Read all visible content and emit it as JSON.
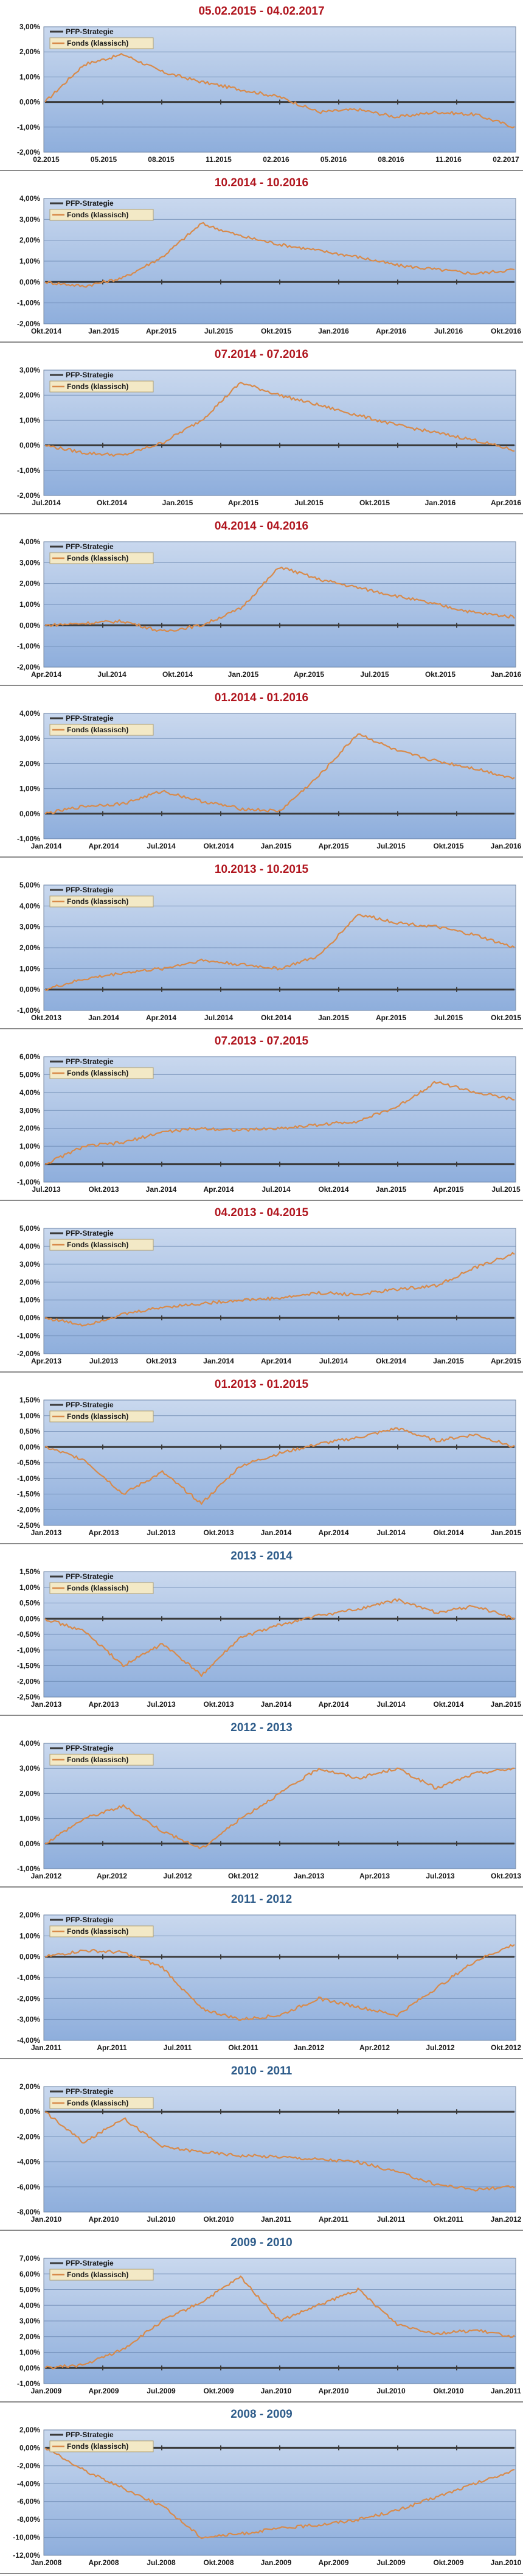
{
  "legend": {
    "series1": "PFP-Strategie",
    "series2": "Fonds (klassisch)"
  },
  "colors": {
    "title_red": "#b0151e",
    "title_blue": "#2e5c8a",
    "line_pfp": "#3b3b3b",
    "line_fonds": "#d88a4a",
    "plot_top": "#c9d8ee",
    "plot_bottom": "#8eaedc"
  },
  "chart_data": [
    {
      "type": "line",
      "title": "05.02.2015 - 04.02.2017",
      "title_color": "red",
      "yticks": [
        "3,00%",
        "2,00%",
        "1,00%",
        "0,00%",
        "-1,00%",
        "-2,00%"
      ],
      "ylim": [
        -2,
        3
      ],
      "xticks": [
        "02.2015",
        "05.2015",
        "08.2015",
        "11.2015",
        "02.2016",
        "05.2016",
        "08.2016",
        "11.2016",
        "02.2017"
      ],
      "series": [
        {
          "name": "PFP-Strategie",
          "values": [
            0,
            0,
            0,
            0,
            0,
            0,
            0,
            0,
            0,
            0,
            0,
            0,
            0
          ]
        },
        {
          "name": "Fonds (klassisch)",
          "values": [
            0,
            1.5,
            1.9,
            1.2,
            0.8,
            0.5,
            0.2,
            -0.4,
            -0.3,
            -0.6,
            -0.4,
            -0.5,
            -1.0
          ]
        }
      ]
    },
    {
      "type": "line",
      "title": "10.2014 - 10.2016",
      "title_color": "red",
      "yticks": [
        "4,00%",
        "3,00%",
        "2,00%",
        "1,00%",
        "0,00%",
        "-1,00%",
        "-2,00%"
      ],
      "ylim": [
        -2,
        4
      ],
      "xticks": [
        "Okt.2014",
        "Jan.2015",
        "Apr.2015",
        "Jul.2015",
        "Okt.2015",
        "Jan.2016",
        "Apr.2016",
        "Jul.2016",
        "Okt.2016"
      ],
      "series": [
        {
          "name": "PFP-Strategie",
          "values": [
            0,
            0,
            0,
            0,
            0,
            0,
            0,
            0,
            0,
            0,
            0,
            0,
            0
          ]
        },
        {
          "name": "Fonds (klassisch)",
          "values": [
            0,
            -0.2,
            0.2,
            1.2,
            2.8,
            2.2,
            1.8,
            1.5,
            1.2,
            0.8,
            0.6,
            0.4,
            0.6
          ]
        }
      ]
    },
    {
      "type": "line",
      "title": "07.2014 - 07.2016",
      "title_color": "red",
      "yticks": [
        "3,00%",
        "2,00%",
        "1,00%",
        "0,00%",
        "-1,00%",
        "-2,00%"
      ],
      "ylim": [
        -2,
        3
      ],
      "xticks": [
        "Jul.2014",
        "Okt.2014",
        "Jan.2015",
        "Apr.2015",
        "Jul.2015",
        "Okt.2015",
        "Jan.2016",
        "Apr.2016"
      ],
      "series": [
        {
          "name": "PFP-Strategie",
          "values": [
            0,
            0,
            0,
            0,
            0,
            0,
            0,
            0,
            0,
            0,
            0,
            0,
            0
          ]
        },
        {
          "name": "Fonds (klassisch)",
          "values": [
            0,
            -0.3,
            -0.4,
            0.1,
            1.0,
            2.5,
            2.0,
            1.6,
            1.2,
            0.8,
            0.5,
            0.2,
            -0.2
          ]
        }
      ]
    },
    {
      "type": "line",
      "title": "04.2014 - 04.2016",
      "title_color": "red",
      "yticks": [
        "4,00%",
        "3,00%",
        "2,00%",
        "1,00%",
        "0,00%",
        "-1,00%",
        "-2,00%"
      ],
      "ylim": [
        -2,
        4
      ],
      "xticks": [
        "Apr.2014",
        "Jul.2014",
        "Okt.2014",
        "Jan.2015",
        "Apr.2015",
        "Jul.2015",
        "Okt.2015",
        "Jan.2016"
      ],
      "series": [
        {
          "name": "PFP-Strategie",
          "values": [
            0,
            0,
            0,
            0,
            0,
            0,
            0,
            0,
            0,
            0,
            0,
            0,
            0
          ]
        },
        {
          "name": "Fonds (klassisch)",
          "values": [
            0,
            0.1,
            0.2,
            -0.3,
            0.0,
            0.8,
            2.8,
            2.2,
            1.8,
            1.4,
            1.0,
            0.6,
            0.4
          ]
        }
      ]
    },
    {
      "type": "line",
      "title": "01.2014 - 01.2016",
      "title_color": "red",
      "yticks": [
        "4,00%",
        "3,00%",
        "2,00%",
        "1,00%",
        "0,00%",
        "-1,00%"
      ],
      "ylim": [
        -1,
        4
      ],
      "xticks": [
        "Jan.2014",
        "Apr.2014",
        "Jul.2014",
        "Okt.2014",
        "Jan.2015",
        "Apr.2015",
        "Jul.2015",
        "Okt.2015",
        "Jan.2016"
      ],
      "series": [
        {
          "name": "PFP-Strategie",
          "values": [
            0,
            0,
            0,
            0,
            0,
            0,
            0,
            0,
            0,
            0,
            0,
            0,
            0
          ]
        },
        {
          "name": "Fonds (klassisch)",
          "values": [
            0,
            0.3,
            0.4,
            0.9,
            0.5,
            0.2,
            0.1,
            1.5,
            3.2,
            2.5,
            2.1,
            1.8,
            1.4
          ]
        }
      ]
    },
    {
      "type": "line",
      "title": "10.2013 - 10.2015",
      "title_color": "red",
      "yticks": [
        "5,00%",
        "4,00%",
        "3,00%",
        "2,00%",
        "1,00%",
        "0,00%",
        "-1,00%"
      ],
      "ylim": [
        -1,
        5
      ],
      "xticks": [
        "Okt.2013",
        "Jan.2014",
        "Apr.2014",
        "Jul.2014",
        "Okt.2014",
        "Jan.2015",
        "Apr.2015",
        "Jul.2015",
        "Okt.2015"
      ],
      "series": [
        {
          "name": "PFP-Strategie",
          "values": [
            0,
            0,
            0,
            0,
            0,
            0,
            0,
            0,
            0,
            0,
            0,
            0,
            0
          ]
        },
        {
          "name": "Fonds (klassisch)",
          "values": [
            0,
            0.5,
            0.8,
            1.0,
            1.4,
            1.2,
            1.0,
            1.6,
            3.6,
            3.2,
            3.0,
            2.6,
            2.0
          ]
        }
      ]
    },
    {
      "type": "line",
      "title": "07.2013 - 07.2015",
      "title_color": "red",
      "yticks": [
        "6,00%",
        "5,00%",
        "4,00%",
        "3,00%",
        "2,00%",
        "1,00%",
        "0,00%",
        "-1,00%"
      ],
      "ylim": [
        -1,
        6
      ],
      "xticks": [
        "Jul.2013",
        "Okt.2013",
        "Jan.2014",
        "Apr.2014",
        "Jul.2014",
        "Okt.2014",
        "Jan.2015",
        "Apr.2015",
        "Jul.2015"
      ],
      "series": [
        {
          "name": "PFP-Strategie",
          "values": [
            0,
            0,
            0,
            0,
            0,
            0,
            0,
            0,
            0,
            0,
            0,
            0,
            0
          ]
        },
        {
          "name": "Fonds (klassisch)",
          "values": [
            0,
            1.0,
            1.2,
            1.8,
            2.0,
            1.9,
            2.0,
            2.2,
            2.4,
            3.2,
            4.6,
            4.0,
            3.6
          ]
        }
      ]
    },
    {
      "type": "line",
      "title": "04.2013 - 04.2015",
      "title_color": "red",
      "yticks": [
        "5,00%",
        "4,00%",
        "3,00%",
        "2,00%",
        "1,00%",
        "0,00%",
        "-1,00%",
        "-2,00%"
      ],
      "ylim": [
        -2,
        5
      ],
      "xticks": [
        "Apr.2013",
        "Jul.2013",
        "Okt.2013",
        "Jan.2014",
        "Apr.2014",
        "Jul.2014",
        "Okt.2014",
        "Jan.2015",
        "Apr.2015"
      ],
      "series": [
        {
          "name": "PFP-Strategie",
          "values": [
            0,
            0,
            0,
            0,
            0,
            0,
            0,
            0,
            0,
            0,
            0,
            0,
            0
          ]
        },
        {
          "name": "Fonds (klassisch)",
          "values": [
            0,
            -0.4,
            0.2,
            0.6,
            0.8,
            1.0,
            1.1,
            1.4,
            1.3,
            1.6,
            1.8,
            2.8,
            3.6
          ]
        }
      ]
    },
    {
      "type": "line",
      "title": "01.2013 - 01.2015",
      "title_color": "red",
      "yticks": [
        "1,50%",
        "1,00%",
        "0,50%",
        "0,00%",
        "-0,50%",
        "-1,00%",
        "-1,50%",
        "-2,00%",
        "-2,50%"
      ],
      "ylim": [
        -2.5,
        1.5
      ],
      "xticks": [
        "Jan.2013",
        "Apr.2013",
        "Jul.2013",
        "Okt.2013",
        "Jan.2014",
        "Apr.2014",
        "Jul.2014",
        "Okt.2014",
        "Jan.2015"
      ],
      "series": [
        {
          "name": "PFP-Strategie",
          "values": [
            0,
            0,
            0,
            0,
            0,
            0,
            0,
            0,
            0,
            0,
            0,
            0,
            0
          ]
        },
        {
          "name": "Fonds (klassisch)",
          "values": [
            0,
            -0.4,
            -1.5,
            -0.8,
            -1.8,
            -0.6,
            -0.2,
            0.1,
            0.3,
            0.6,
            0.2,
            0.4,
            0.0
          ]
        }
      ]
    },
    {
      "type": "line",
      "title": "2013 - 2014",
      "title_color": "blue",
      "yticks": [
        "1,50%",
        "1,00%",
        "0,50%",
        "0,00%",
        "-0,50%",
        "-1,00%",
        "-1,50%",
        "-2,00%",
        "-2,50%"
      ],
      "ylim": [
        -2.5,
        1.5
      ],
      "xticks": [
        "Jan.2013",
        "Apr.2013",
        "Jul.2013",
        "Okt.2013",
        "Jan.2014",
        "Apr.2014",
        "Jul.2014",
        "Okt.2014",
        "Jan.2015"
      ],
      "series": [
        {
          "name": "PFP-Strategie",
          "values": [
            0,
            0,
            0,
            0,
            0,
            0,
            0,
            0,
            0,
            0,
            0,
            0,
            0
          ]
        },
        {
          "name": "Fonds (klassisch)",
          "values": [
            0,
            -0.4,
            -1.5,
            -0.8,
            -1.8,
            -0.6,
            -0.2,
            0.1,
            0.3,
            0.6,
            0.2,
            0.4,
            0.0
          ]
        }
      ]
    },
    {
      "type": "line",
      "title": "2012 - 2013",
      "title_color": "blue",
      "yticks": [
        "4,00%",
        "3,00%",
        "2,00%",
        "1,00%",
        "0,00%",
        "-1,00%"
      ],
      "ylim": [
        -1,
        4
      ],
      "xticks": [
        "Jan.2012",
        "Apr.2012",
        "Jul.2012",
        "Okt.2012",
        "Jan.2013",
        "Apr.2013",
        "Jul.2013",
        "Okt.2013"
      ],
      "series": [
        {
          "name": "PFP-Strategie",
          "values": [
            0,
            0,
            0,
            0,
            0,
            0,
            0,
            0,
            0,
            0,
            0,
            0,
            0
          ]
        },
        {
          "name": "Fonds (klassisch)",
          "values": [
            0,
            1.0,
            1.5,
            0.5,
            -0.2,
            1.0,
            2.0,
            3.0,
            2.6,
            3.0,
            2.2,
            2.8,
            3.0
          ]
        }
      ]
    },
    {
      "type": "line",
      "title": "2011 - 2012",
      "title_color": "blue",
      "yticks": [
        "2,00%",
        "1,00%",
        "0,00%",
        "-1,00%",
        "-2,00%",
        "-3,00%",
        "-4,00%"
      ],
      "ylim": [
        -4,
        2
      ],
      "xticks": [
        "Jan.2011",
        "Apr.2011",
        "Jul.2011",
        "Okt.2011",
        "Jan.2012",
        "Apr.2012",
        "Jul.2012",
        "Okt.2012"
      ],
      "series": [
        {
          "name": "PFP-Strategie",
          "values": [
            0,
            0,
            0,
            0,
            0,
            0,
            0,
            0,
            0,
            0,
            0,
            0,
            0
          ]
        },
        {
          "name": "Fonds (klassisch)",
          "values": [
            0,
            0.3,
            0.2,
            -0.5,
            -2.5,
            -3.0,
            -2.8,
            -2.0,
            -2.4,
            -2.8,
            -1.5,
            -0.2,
            0.6
          ]
        }
      ]
    },
    {
      "type": "line",
      "title": "2010 - 2011",
      "title_color": "blue",
      "yticks": [
        "2,00%",
        "0,00%",
        "-2,00%",
        "-4,00%",
        "-6,00%",
        "-8,00%"
      ],
      "ylim": [
        -8,
        2
      ],
      "xticks": [
        "Jan.2010",
        "Apr.2010",
        "Jul.2010",
        "Okt.2010",
        "Jan.2011",
        "Apr.2011",
        "Jul.2011",
        "Okt.2011",
        "Jan.2012"
      ],
      "series": [
        {
          "name": "PFP-Strategie",
          "values": [
            0,
            0,
            0,
            0,
            0,
            0,
            0,
            0,
            0,
            0,
            0,
            0,
            0
          ]
        },
        {
          "name": "Fonds (klassisch)",
          "values": [
            0,
            -2.5,
            -0.5,
            -2.8,
            -3.2,
            -3.5,
            -3.6,
            -3.8,
            -4.0,
            -4.8,
            -5.8,
            -6.2,
            -6.0
          ]
        }
      ]
    },
    {
      "type": "line",
      "title": "2009 - 2010",
      "title_color": "blue",
      "yticks": [
        "7,00%",
        "6,00%",
        "5,00%",
        "4,00%",
        "3,00%",
        "2,00%",
        "1,00%",
        "0,00%",
        "-1,00%"
      ],
      "ylim": [
        -1,
        7
      ],
      "xticks": [
        "Jan.2009",
        "Apr.2009",
        "Jul.2009",
        "Okt.2009",
        "Jan.2010",
        "Apr.2010",
        "Jul.2010",
        "Okt.2010",
        "Jan.2011"
      ],
      "series": [
        {
          "name": "PFP-Strategie",
          "values": [
            0,
            0,
            0,
            0,
            0,
            0,
            0,
            0,
            0,
            0,
            0,
            0,
            0
          ]
        },
        {
          "name": "Fonds (klassisch)",
          "values": [
            0,
            0.2,
            1.2,
            3.0,
            4.2,
            5.8,
            3.0,
            4.0,
            5.0,
            2.8,
            2.2,
            2.4,
            2.0
          ]
        }
      ]
    },
    {
      "type": "line",
      "title": "2008 - 2009",
      "title_color": "blue",
      "yticks": [
        "2,00%",
        "0,00%",
        "-2,00%",
        "-4,00%",
        "-6,00%",
        "-8,00%",
        "-10,00%",
        "-12,00%"
      ],
      "ylim": [
        -12,
        2
      ],
      "xticks": [
        "Jan.2008",
        "Apr.2008",
        "Jul.2008",
        "Okt.2008",
        "Jan.2009",
        "Apr.2009",
        "Jul.2009",
        "Okt.2009",
        "Jan.2010"
      ],
      "series": [
        {
          "name": "PFP-Strategie",
          "values": [
            0,
            0,
            0,
            0,
            0,
            0,
            0,
            0,
            0,
            0,
            0,
            0,
            0
          ]
        },
        {
          "name": "Fonds (klassisch)",
          "values": [
            0,
            -2.5,
            -4.5,
            -6.5,
            -10.0,
            -9.6,
            -9.0,
            -8.6,
            -8.0,
            -7.0,
            -5.5,
            -4.0,
            -2.5
          ]
        }
      ]
    }
  ]
}
